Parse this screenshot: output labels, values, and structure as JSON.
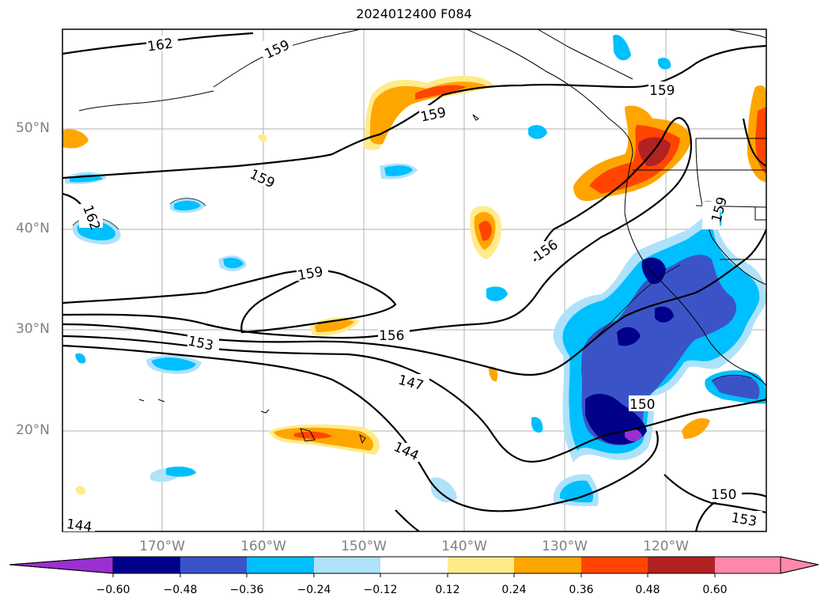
{
  "title": "2024012400 F084",
  "lat_labels": [
    "50°N",
    "40°N",
    "30°N",
    "20°N"
  ],
  "lon_labels": [
    "170°W",
    "160°W",
    "150°W",
    "140°W",
    "130°W",
    "120°W"
  ],
  "contour_labels": [
    "162",
    "159",
    "159",
    "159",
    "159",
    "159",
    "162",
    "156",
    "159",
    "156",
    "153",
    "147",
    "150",
    "144",
    "150",
    "153",
    "144"
  ],
  "colorbar": {
    "ticks": [
      "−0.60",
      "−0.48",
      "−0.36",
      "−0.24",
      "−0.12",
      "0.12",
      "0.24",
      "0.36",
      "0.48",
      "0.60"
    ],
    "colors": [
      "#9b30d0",
      "#00008b",
      "#3a54c8",
      "#00bfff",
      "#ade2fa",
      "#ffffff",
      "#ffeb8a",
      "#ffa500",
      "#ff4500",
      "#b22222",
      "#ff88aa"
    ]
  }
}
